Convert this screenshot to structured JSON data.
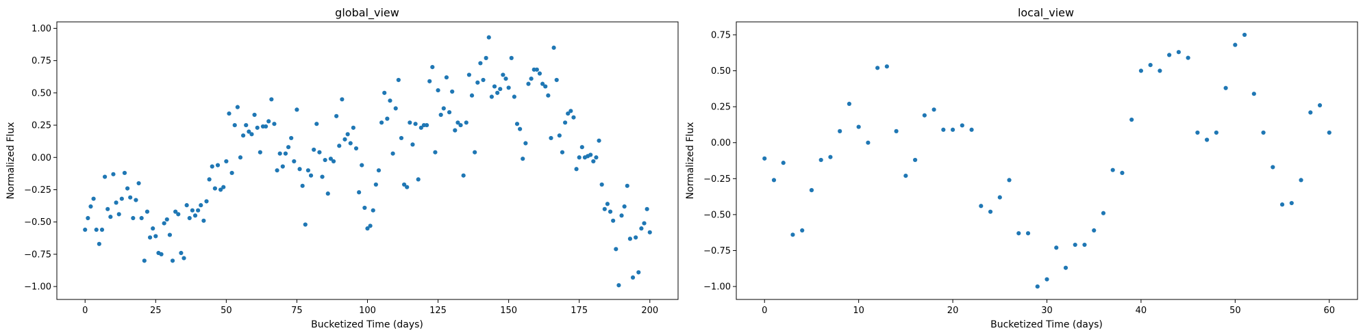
{
  "chart_data": [
    {
      "type": "scatter",
      "title": "global_view",
      "xlabel": "Bucketized Time (days)",
      "ylabel": "Normalized Flux",
      "xlim": [
        -10,
        210
      ],
      "ylim": [
        -1.1,
        1.05
      ],
      "xticks": [
        0,
        25,
        50,
        75,
        100,
        125,
        150,
        175,
        200
      ],
      "yticks": [
        -1.0,
        -0.75,
        -0.5,
        -0.25,
        0.0,
        0.25,
        0.5,
        0.75,
        1.0
      ],
      "xtick_labels": [
        "0",
        "25",
        "50",
        "75",
        "100",
        "125",
        "150",
        "175",
        "200"
      ],
      "ytick_labels": [
        "−1.00",
        "−0.75",
        "−0.50",
        "−0.25",
        "0.00",
        "0.25",
        "0.50",
        "0.75",
        "1.00"
      ],
      "grid": false,
      "marker_color": "#1f77b4",
      "series": [
        {
          "x": [
            0,
            1,
            2,
            3,
            4,
            5,
            6,
            7,
            8,
            9,
            10,
            11,
            12,
            13,
            14,
            15,
            16,
            17,
            18,
            19,
            20,
            21,
            22,
            23,
            24,
            25,
            26,
            27,
            28,
            29,
            30,
            31,
            32,
            33,
            34,
            35,
            36,
            37,
            38,
            39,
            40,
            41,
            42,
            43,
            44,
            45,
            46,
            47,
            48,
            49,
            50,
            51,
            52,
            53,
            54,
            55,
            56,
            57,
            58,
            59,
            60,
            61,
            62,
            63,
            64,
            65,
            66,
            67,
            68,
            69,
            70,
            71,
            72,
            73,
            74,
            75,
            76,
            77,
            78,
            79,
            80,
            81,
            82,
            83,
            84,
            85,
            86,
            87,
            88,
            89,
            90,
            91,
            92,
            93,
            94,
            95,
            96,
            97,
            98,
            99,
            100,
            101,
            102,
            103,
            104,
            105,
            106,
            107,
            108,
            109,
            110,
            111,
            112,
            113,
            114,
            115,
            116,
            117,
            118,
            119,
            120,
            121,
            122,
            123,
            124,
            125,
            126,
            127,
            128,
            129,
            130,
            131,
            132,
            133,
            134,
            135,
            136,
            137,
            138,
            139,
            140,
            141,
            142,
            143,
            144,
            145,
            146,
            147,
            148,
            149,
            150,
            151,
            152,
            153,
            154,
            155,
            156,
            157,
            158,
            159,
            160,
            161,
            162,
            163,
            164,
            165,
            166,
            167,
            168,
            169,
            170,
            171,
            172,
            173,
            174,
            175,
            176,
            177,
            178,
            179,
            180,
            181,
            182,
            183,
            184,
            185,
            186,
            187,
            188,
            189,
            190,
            191,
            192,
            193,
            194,
            195,
            196,
            197,
            198,
            199,
            200
          ],
          "y": [
            -0.56,
            -0.47,
            -0.38,
            -0.32,
            -0.56,
            -0.67,
            -0.56,
            -0.15,
            -0.4,
            -0.46,
            -0.13,
            -0.35,
            -0.44,
            -0.32,
            -0.12,
            -0.24,
            -0.31,
            -0.47,
            -0.33,
            -0.2,
            -0.47,
            -0.8,
            -0.42,
            -0.62,
            -0.55,
            -0.61,
            -0.74,
            -0.75,
            -0.51,
            -0.48,
            -0.6,
            -0.8,
            -0.42,
            -0.44,
            -0.74,
            -0.78,
            -0.37,
            -0.47,
            -0.41,
            -0.45,
            -0.41,
            -0.37,
            -0.49,
            -0.34,
            -0.17,
            -0.07,
            -0.24,
            -0.06,
            -0.25,
            -0.23,
            -0.03,
            0.34,
            -0.12,
            0.25,
            0.39,
            0.0,
            0.17,
            0.25,
            0.2,
            0.18,
            0.33,
            0.23,
            0.04,
            0.24,
            0.24,
            0.28,
            0.45,
            0.26,
            -0.1,
            0.03,
            -0.07,
            0.03,
            0.08,
            0.15,
            -0.03,
            0.37,
            -0.09,
            -0.22,
            -0.52,
            -0.1,
            -0.14,
            0.06,
            0.26,
            0.04,
            -0.15,
            -0.02,
            -0.28,
            -0.01,
            -0.03,
            0.32,
            0.09,
            0.45,
            0.14,
            0.18,
            0.11,
            0.23,
            0.07,
            -0.27,
            -0.06,
            -0.39,
            -0.55,
            -0.53,
            -0.41,
            -0.21,
            -0.1,
            0.27,
            0.5,
            0.3,
            0.44,
            0.03,
            0.38,
            0.6,
            0.15,
            -0.21,
            -0.23,
            0.27,
            0.1,
            0.26,
            -0.17,
            0.23,
            0.25,
            0.25,
            0.59,
            0.7,
            0.04,
            0.52,
            0.33,
            0.38,
            0.62,
            0.35,
            0.51,
            0.21,
            0.27,
            0.25,
            -0.14,
            0.27,
            0.64,
            0.48,
            0.04,
            0.58,
            0.73,
            0.6,
            0.77,
            0.93,
            0.47,
            0.55,
            0.5,
            0.53,
            0.64,
            0.61,
            0.54,
            0.77,
            0.47,
            0.26,
            0.22,
            -0.01,
            0.11,
            0.57,
            0.61,
            0.68,
            0.68,
            0.65,
            0.57,
            0.55,
            0.48,
            0.15,
            0.85,
            0.6,
            0.17,
            0.04,
            0.27,
            0.34,
            0.36,
            0.31,
            -0.09,
            0.0,
            0.08,
            0.0,
            0.01,
            0.02,
            -0.03,
            0.0,
            0.13,
            -0.21,
            -0.4,
            -0.36,
            -0.42,
            -0.49,
            -0.71,
            -0.99,
            -0.45,
            -0.38,
            -0.22,
            -0.63,
            -0.93,
            -0.62,
            -0.89,
            -0.55,
            -0.51,
            -0.4,
            -0.58
          ]
        }
      ]
    },
    {
      "type": "scatter",
      "title": "local_view",
      "xlabel": "Bucketized Time (days)",
      "ylabel": "Normalized Flux",
      "xlim": [
        -3,
        63
      ],
      "ylim": [
        -1.09,
        0.84
      ],
      "xticks": [
        0,
        10,
        20,
        30,
        40,
        50,
        60
      ],
      "yticks": [
        -1.0,
        -0.75,
        -0.5,
        -0.25,
        0.0,
        0.25,
        0.5,
        0.75
      ],
      "xtick_labels": [
        "0",
        "10",
        "20",
        "30",
        "40",
        "50",
        "60"
      ],
      "ytick_labels": [
        "−1.00",
        "−0.75",
        "−0.50",
        "−0.25",
        "0.00",
        "0.25",
        "0.50",
        "0.75"
      ],
      "grid": false,
      "marker_color": "#1f77b4",
      "series": [
        {
          "x": [
            0,
            1,
            2,
            3,
            4,
            5,
            6,
            7,
            8,
            9,
            10,
            11,
            12,
            13,
            14,
            15,
            16,
            17,
            18,
            19,
            20,
            21,
            22,
            23,
            24,
            25,
            26,
            27,
            28,
            29,
            30,
            31,
            32,
            33,
            34,
            35,
            36,
            37,
            38,
            39,
            40,
            41,
            42,
            43,
            44,
            45,
            46,
            47,
            48,
            49,
            50,
            51,
            52,
            53,
            54,
            55,
            56,
            57,
            58,
            59,
            60
          ],
          "y": [
            -0.11,
            -0.26,
            -0.14,
            -0.64,
            -0.61,
            -0.33,
            -0.12,
            -0.1,
            0.08,
            0.27,
            0.11,
            0.0,
            0.52,
            0.53,
            0.08,
            -0.23,
            -0.12,
            0.19,
            0.23,
            0.09,
            0.09,
            0.12,
            0.09,
            -0.44,
            -0.48,
            -0.38,
            -0.26,
            -0.63,
            -0.63,
            -1.0,
            -0.95,
            -0.73,
            -0.87,
            -0.71,
            -0.71,
            -0.61,
            -0.49,
            -0.19,
            -0.21,
            0.16,
            0.5,
            0.54,
            0.5,
            0.61,
            0.63,
            0.59,
            0.07,
            0.02,
            0.07,
            0.38,
            0.68,
            0.75,
            0.34,
            0.07,
            -0.17,
            -0.43,
            -0.42,
            -0.26,
            0.21,
            0.26,
            0.07
          ]
        }
      ]
    }
  ]
}
